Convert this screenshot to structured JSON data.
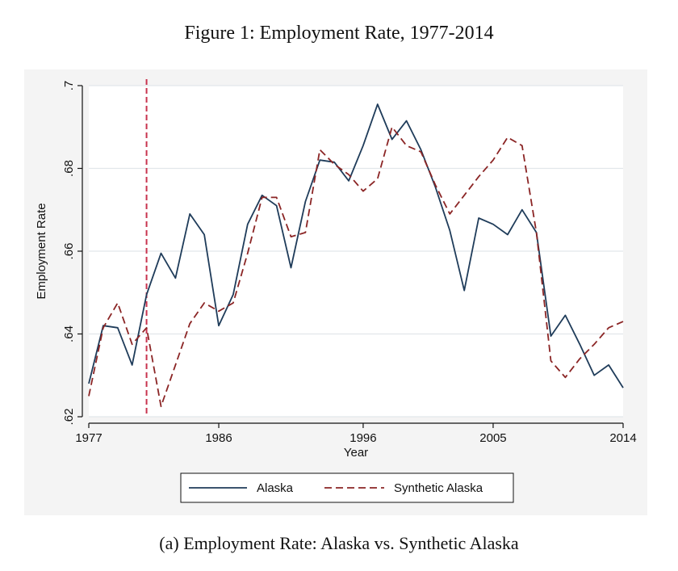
{
  "figure_title": "Figure 1: Employment Rate, 1977-2014",
  "caption": "(a) Employment Rate: Alaska vs. Synthetic Alaska",
  "colors": {
    "alaska": "#1f3c5a",
    "synthetic": "#8b2525",
    "treatment_line": "#c8334e",
    "grid": "#e2e7ea",
    "panel_background": "#f4f4f4",
    "plot_background": "#ffffff"
  },
  "chart_data": {
    "type": "line",
    "xlabel": "Year",
    "ylabel": "Employment Rate",
    "xlim": [
      1977,
      2014
    ],
    "ylim": [
      0.62,
      0.7
    ],
    "x_ticks": [
      1977,
      1986,
      1996,
      2005,
      2014
    ],
    "x_tick_labels": [
      "1977",
      "1986",
      "1996",
      "2005",
      "2014"
    ],
    "y_ticks": [
      0.62,
      0.64,
      0.66,
      0.68,
      0.7
    ],
    "y_tick_labels": [
      ".62",
      ".64",
      ".66",
      ".68",
      ".7"
    ],
    "grid": "horizontal",
    "legend_position": "bottom",
    "treatment_year": 1981,
    "x": [
      1977,
      1978,
      1979,
      1980,
      1981,
      1982,
      1983,
      1984,
      1985,
      1986,
      1987,
      1988,
      1989,
      1990,
      1991,
      1992,
      1993,
      1994,
      1995,
      1996,
      1997,
      1998,
      1999,
      2000,
      2001,
      2002,
      2003,
      2004,
      2005,
      2006,
      2007,
      2008,
      2009,
      2010,
      2011,
      2012,
      2013,
      2014
    ],
    "series": [
      {
        "name": "Alaska",
        "style": "solid",
        "values": [
          0.628,
          0.642,
          0.6415,
          0.6325,
          0.6495,
          0.6595,
          0.6535,
          0.669,
          0.664,
          0.642,
          0.6495,
          0.6665,
          0.6735,
          0.671,
          0.656,
          0.672,
          0.682,
          0.6815,
          0.677,
          0.6855,
          0.6955,
          0.687,
          0.6915,
          0.6845,
          0.6755,
          0.665,
          0.6505,
          0.668,
          0.6665,
          0.664,
          0.67,
          0.6645,
          0.6395,
          0.6445,
          0.6375,
          0.63,
          0.6325,
          0.627
        ]
      },
      {
        "name": "Synthetic Alaska",
        "style": "dashed",
        "values": [
          0.625,
          0.6415,
          0.6475,
          0.6375,
          0.6415,
          0.6225,
          0.6325,
          0.6425,
          0.6475,
          0.6455,
          0.6475,
          0.6595,
          0.673,
          0.673,
          0.6635,
          0.6645,
          0.6845,
          0.681,
          0.6785,
          0.6745,
          0.6775,
          0.69,
          0.6855,
          0.684,
          0.676,
          0.669,
          0.6735,
          0.678,
          0.682,
          0.6875,
          0.6855,
          0.6645,
          0.6335,
          0.6295,
          0.634,
          0.6375,
          0.6415,
          0.643
        ]
      }
    ]
  }
}
